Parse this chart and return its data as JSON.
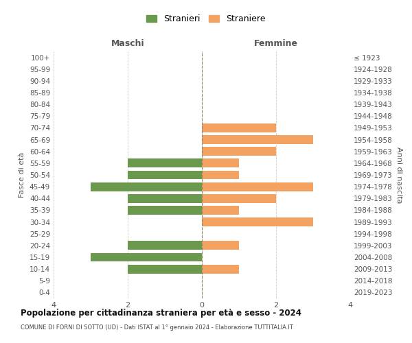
{
  "age_groups": [
    "100+",
    "95-99",
    "90-94",
    "85-89",
    "80-84",
    "75-79",
    "70-74",
    "65-69",
    "60-64",
    "55-59",
    "50-54",
    "45-49",
    "40-44",
    "35-39",
    "30-34",
    "25-29",
    "20-24",
    "15-19",
    "10-14",
    "5-9",
    "0-4"
  ],
  "birth_years": [
    "≤ 1923",
    "1924-1928",
    "1929-1933",
    "1934-1938",
    "1939-1943",
    "1944-1948",
    "1949-1953",
    "1954-1958",
    "1959-1963",
    "1964-1968",
    "1969-1973",
    "1974-1978",
    "1979-1983",
    "1984-1988",
    "1989-1993",
    "1994-1998",
    "1999-2003",
    "2004-2008",
    "2009-2013",
    "2014-2018",
    "2019-2023"
  ],
  "males": [
    0,
    0,
    0,
    0,
    0,
    0,
    0,
    0,
    0,
    2,
    2,
    3,
    2,
    2,
    0,
    0,
    2,
    3,
    2,
    0,
    0
  ],
  "females": [
    0,
    0,
    0,
    0,
    0,
    0,
    2,
    3,
    2,
    1,
    1,
    3,
    2,
    1,
    3,
    0,
    1,
    0,
    1,
    0,
    0
  ],
  "male_color": "#6a994e",
  "female_color": "#f4a261",
  "title": "Popolazione per cittadinanza straniera per età e sesso - 2024",
  "subtitle": "COMUNE DI FORNI DI SOTTO (UD) - Dati ISTAT al 1° gennaio 2024 - Elaborazione TUTTITALIA.IT",
  "legend_male": "Stranieri",
  "legend_female": "Straniere",
  "label_maschi": "Maschi",
  "label_femmine": "Femmine",
  "ylabel_left": "Fasce di età",
  "ylabel_right": "Anni di nascita",
  "xlim": 4,
  "background_color": "#ffffff",
  "grid_color": "#cccccc",
  "bar_height": 0.75
}
